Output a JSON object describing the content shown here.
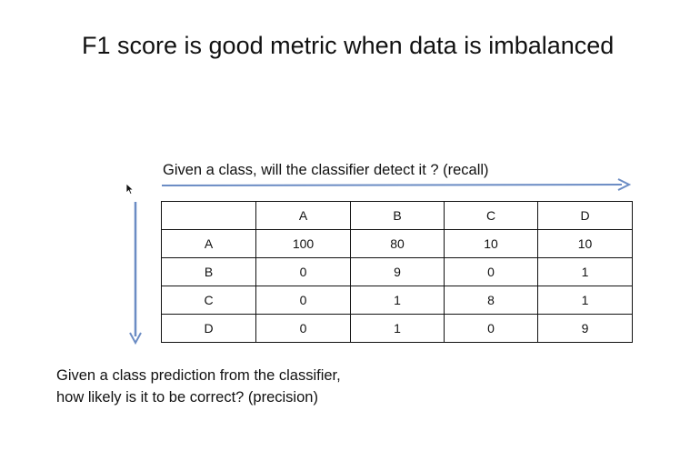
{
  "slide": {
    "title": "F1 score is good metric when data is imbalanced",
    "recall_label": "Given a class, will the classifier detect it ? (recall)",
    "precision_label": {
      "line1": "Given a class prediction from the classifier,",
      "line2": "how likely is it to be correct? (precision)"
    },
    "arrow_color": "#6b8cc4"
  },
  "matrix": {
    "corner": "",
    "columns": [
      "A",
      "B",
      "C",
      "D"
    ],
    "rows": [
      {
        "label": "A",
        "values": [
          "100",
          "80",
          "10",
          "10"
        ]
      },
      {
        "label": "B",
        "values": [
          "0",
          "9",
          "0",
          "1"
        ]
      },
      {
        "label": "C",
        "values": [
          "0",
          "1",
          "8",
          "1"
        ]
      },
      {
        "label": "D",
        "values": [
          "0",
          "1",
          "0",
          "9"
        ]
      }
    ]
  }
}
